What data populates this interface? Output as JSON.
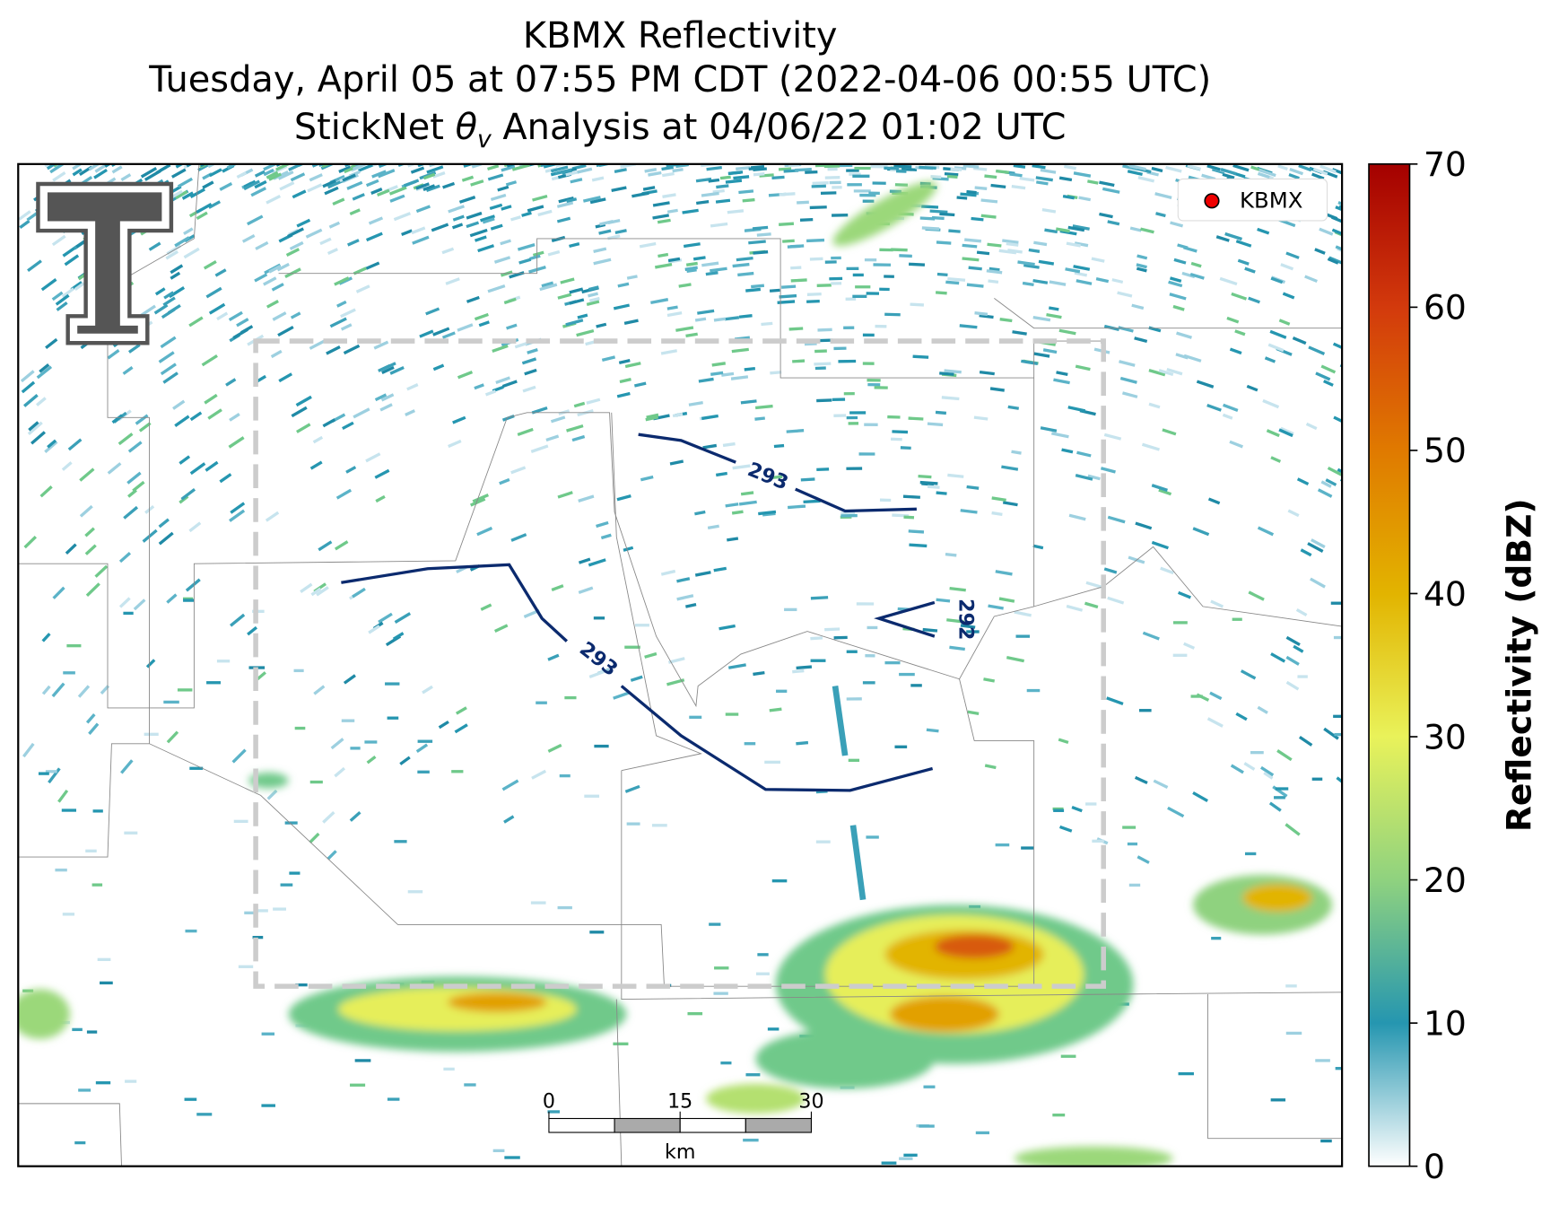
{
  "title": {
    "line1": "KBMX Reflectivity",
    "line2": "Tuesday, April 05 at 07:55 PM CDT (2022-04-06 00:55 UTC)",
    "line3": {
      "prefix": "StickNet ",
      "symbol": "θ",
      "subscript": "v",
      "suffix": " Analysis at 04/06/22 01:02 UTC"
    }
  },
  "legend": {
    "label": "KBMX"
  },
  "colorbar": {
    "label": "Reflectivity (dBZ)",
    "lim": [
      0,
      70
    ],
    "ticks": [
      0,
      10,
      20,
      30,
      40,
      50,
      60,
      70
    ]
  },
  "contours": [
    {
      "label": 293
    },
    {
      "label": 293
    },
    {
      "label": 292
    }
  ],
  "scale_bar": {
    "ticks": [
      0,
      15,
      30
    ],
    "unit": "km"
  }
}
